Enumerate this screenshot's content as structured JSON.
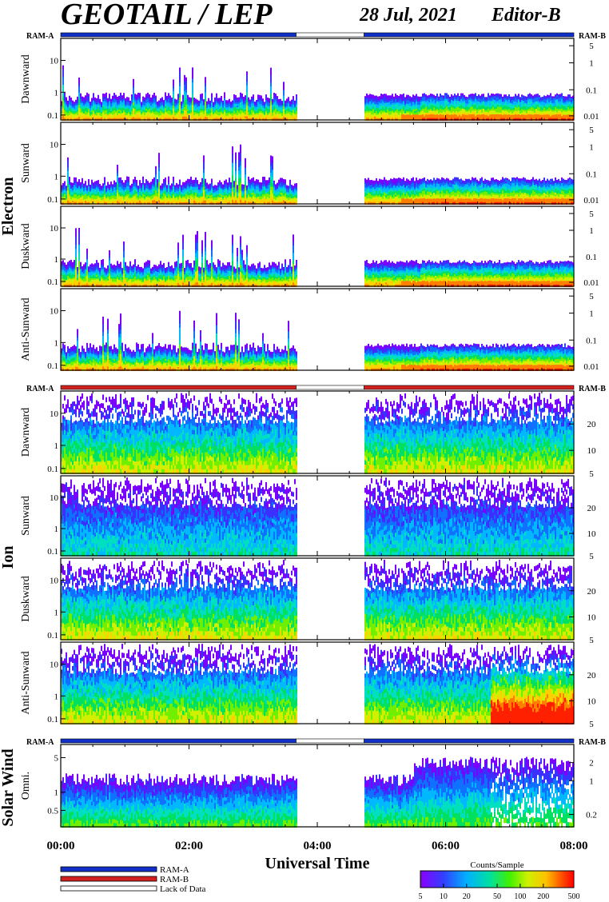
{
  "header": {
    "title": "GEOTAIL / LEP",
    "date": "28 Jul, 2021",
    "editor": "Editor-B"
  },
  "chart_data": {
    "type": "heatmap",
    "xlabel": "Universal Time",
    "x_tick_labels": [
      "00:00",
      "02:00",
      "04:00",
      "06:00",
      "08:00"
    ],
    "x_range_hours": [
      0,
      8
    ],
    "ram_labels": {
      "left": "RAM-A",
      "right": "RAM-B"
    },
    "data_gap_hours": [
      3.67,
      4.73
    ],
    "groups": [
      {
        "name": "Electron",
        "ram_bar": [
          {
            "start": 0.0,
            "end": 3.67,
            "mode": "RAM-A"
          },
          {
            "start": 3.67,
            "end": 4.73,
            "mode": "Lack of Data"
          },
          {
            "start": 4.73,
            "end": 8.0,
            "mode": "RAM-A"
          }
        ],
        "panels": [
          {
            "name": "Dawnward"
          },
          {
            "name": "Sunward"
          },
          {
            "name": "Duskward"
          },
          {
            "name": "Anti-Sunward"
          }
        ],
        "y_left_ticks": [
          "10",
          "1",
          "0.1"
        ],
        "y_right_ticks": [
          "5",
          "1",
          "0.1",
          "0.01"
        ]
      },
      {
        "name": "Ion",
        "ram_bar": [
          {
            "start": 0.0,
            "end": 3.67,
            "mode": "RAM-B"
          },
          {
            "start": 3.67,
            "end": 4.73,
            "mode": "Lack of Data"
          },
          {
            "start": 4.73,
            "end": 8.0,
            "mode": "RAM-B"
          }
        ],
        "panels": [
          {
            "name": "Dawnward"
          },
          {
            "name": "Sunward"
          },
          {
            "name": "Duskward"
          },
          {
            "name": "Anti-Sunward"
          }
        ],
        "y_left_ticks": [
          "10",
          "1",
          "0.1"
        ],
        "y_right_ticks": [
          "20",
          "10",
          "5"
        ]
      },
      {
        "name": "Solar Wind",
        "ram_bar": [
          {
            "start": 0.0,
            "end": 3.67,
            "mode": "RAM-A"
          },
          {
            "start": 3.67,
            "end": 4.73,
            "mode": "Lack of Data"
          },
          {
            "start": 4.73,
            "end": 8.0,
            "mode": "RAM-A"
          }
        ],
        "panels": [
          {
            "name": "Omni."
          }
        ],
        "y_left_ticks": [
          "5",
          "1",
          "0.5"
        ],
        "y_right_ticks": [
          "2",
          "1",
          "0.2"
        ]
      }
    ],
    "legend": [
      {
        "label": "RAM-A",
        "color": "#1030c8"
      },
      {
        "label": "RAM-B",
        "color": "#d02020"
      },
      {
        "label": "Lack of Data",
        "color": "#ffffff"
      }
    ],
    "colorbar": {
      "title": "Counts/Sample",
      "tick_labels": [
        "5",
        "10",
        "20",
        "50",
        "100",
        "200",
        "500"
      ],
      "scale": "log",
      "range": [
        5,
        500
      ],
      "colors": [
        "#ffffff",
        "#7a00ff",
        "#1060ff",
        "#00d0ff",
        "#00e080",
        "#a0f000",
        "#ffe000",
        "#ff7000",
        "#ff0000"
      ]
    }
  }
}
